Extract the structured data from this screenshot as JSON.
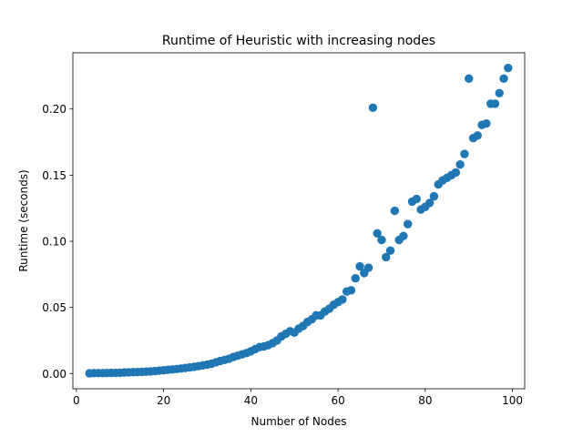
{
  "chart_data": {
    "type": "scatter",
    "title": "Runtime of Heuristic with increasing nodes",
    "xlabel": "Number of Nodes",
    "ylabel": "Runtime (seconds)",
    "xlim": [
      -0.8,
      102.8
    ],
    "ylim": [
      -0.0115,
      0.2425
    ],
    "xticks": [
      0,
      20,
      40,
      60,
      80,
      100
    ],
    "yticks": [
      0.0,
      0.05,
      0.1,
      0.15,
      0.2
    ],
    "xtick_labels": [
      "0",
      "20",
      "40",
      "60",
      "80",
      "100"
    ],
    "ytick_labels": [
      "0.00",
      "0.05",
      "0.10",
      "0.15",
      "0.20"
    ],
    "grid": false,
    "legend": null,
    "marker_color": "#1f77b4",
    "series": [
      {
        "x": [
          3,
          4,
          5,
          6,
          7,
          8,
          9,
          10,
          11,
          12,
          13,
          14,
          15,
          16,
          17,
          18,
          19,
          20,
          21,
          22,
          23,
          24,
          25,
          26,
          27,
          28,
          29,
          30,
          31,
          32,
          33,
          34,
          35,
          36,
          37,
          38,
          39,
          40,
          41,
          42,
          43,
          44,
          45,
          46,
          47,
          48,
          49,
          50,
          51,
          52,
          53,
          54,
          55,
          56,
          57,
          58,
          59,
          60,
          61,
          62,
          63,
          64,
          65,
          66,
          67,
          68,
          69,
          70,
          71,
          72,
          73,
          74,
          75,
          76,
          77,
          78,
          79,
          80,
          81,
          82,
          83,
          84,
          85,
          86,
          87,
          88,
          89,
          90,
          91,
          92,
          93,
          94,
          95,
          96,
          97,
          98,
          99
        ],
        "y": [
          0.0002,
          0.0003,
          0.0003,
          0.0003,
          0.0004,
          0.0005,
          0.0005,
          0.0006,
          0.0008,
          0.0009,
          0.001,
          0.0011,
          0.0013,
          0.0014,
          0.0016,
          0.0019,
          0.0022,
          0.0025,
          0.0028,
          0.0031,
          0.0034,
          0.0038,
          0.0042,
          0.0046,
          0.0051,
          0.0056,
          0.0062,
          0.0068,
          0.0075,
          0.0085,
          0.0095,
          0.0103,
          0.0112,
          0.0125,
          0.0135,
          0.0145,
          0.0155,
          0.0168,
          0.0185,
          0.02,
          0.0205,
          0.0215,
          0.023,
          0.025,
          0.028,
          0.03,
          0.032,
          0.031,
          0.034,
          0.036,
          0.039,
          0.041,
          0.044,
          0.044,
          0.047,
          0.049,
          0.052,
          0.054,
          0.056,
          0.062,
          0.063,
          0.072,
          0.081,
          0.076,
          0.08,
          0.201,
          0.106,
          0.101,
          0.088,
          0.093,
          0.123,
          0.101,
          0.104,
          0.113,
          0.13,
          0.132,
          0.124,
          0.126,
          0.129,
          0.134,
          0.143,
          0.146,
          0.148,
          0.15,
          0.152,
          0.158,
          0.166,
          0.223,
          0.178,
          0.18,
          0.188,
          0.189,
          0.204,
          0.204,
          0.212,
          0.223,
          0.231
        ]
      }
    ]
  }
}
